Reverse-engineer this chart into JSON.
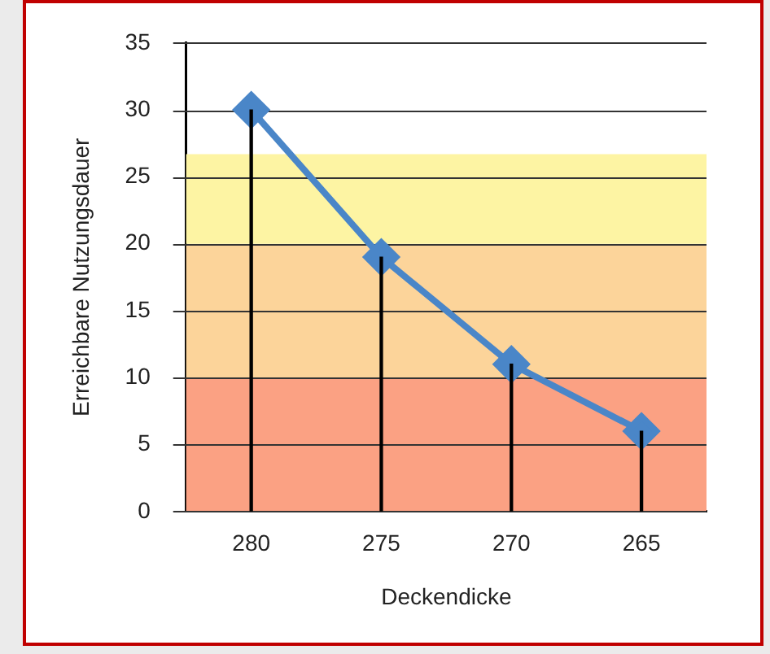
{
  "chart_data": {
    "type": "line",
    "xlabel": "Deckendicke",
    "ylabel": "Erreichbare Nutzungsdauer",
    "categories": [
      "280",
      "275",
      "270",
      "265"
    ],
    "series": [
      {
        "type": "bar",
        "color": "#000000",
        "values": [
          30,
          19,
          11,
          6
        ]
      },
      {
        "color": "#4a86c8",
        "values": [
          30,
          19,
          11,
          6
        ]
      }
    ],
    "ylim": [
      0,
      35
    ],
    "yticks": [
      0,
      5,
      10,
      15,
      20,
      25,
      30,
      35
    ],
    "grid": "y",
    "legend": false,
    "marker": "diamond",
    "line_style": "solid",
    "bands": [
      {
        "axis": "y",
        "from": 0,
        "to": 10,
        "color": "#fba183"
      },
      {
        "axis": "y",
        "from": 10,
        "to": 20,
        "color": "#fcd49a"
      },
      {
        "axis": "y",
        "from": 20,
        "to": 26.7,
        "color": "#fdf4a3"
      }
    ]
  }
}
